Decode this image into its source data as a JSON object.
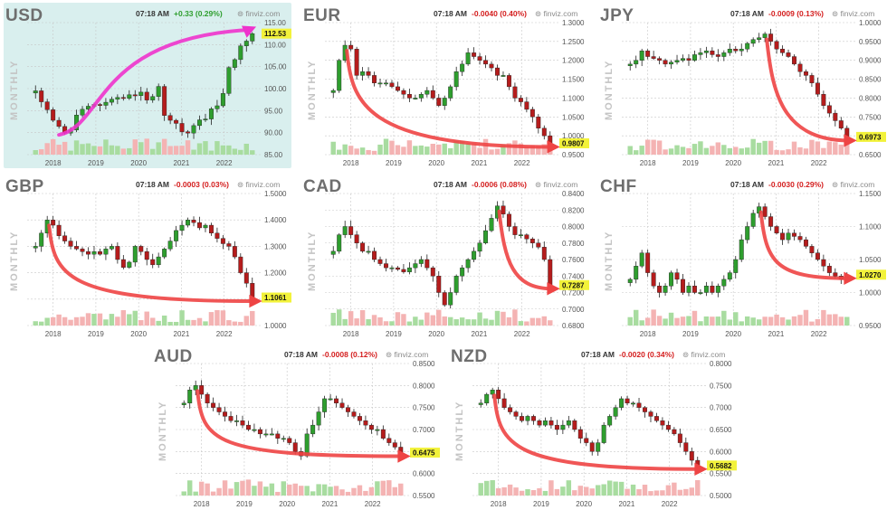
{
  "colors": {
    "up": "#2e9e2e",
    "down": "#b51c1c",
    "vol_up": "#a8dca0",
    "vol_down": "#f4b3b3",
    "grid": "#c8c8c8",
    "arrow_red": "#ee4444",
    "arrow_magenta": "#ee33cc",
    "price_tag": "#f2f23a",
    "highlight_bg": "#d9efee"
  },
  "chart_data": [
    {
      "type": "candlestick",
      "title": "USD",
      "time": "07:18 AM",
      "change": "+0.33 (0.29%)",
      "direction": "up",
      "source": "finviz.com",
      "ylabel": "MONTHLY",
      "last_price": "112.53",
      "yticks": [
        "115.00",
        "110.00",
        "105.00",
        "100.00",
        "95.00",
        "90.00",
        "85.00"
      ],
      "xticks": [
        "2018",
        "2019",
        "2020",
        "2021",
        "2022"
      ],
      "ylim": [
        85,
        115
      ],
      "arrow": "magenta",
      "highlight": true,
      "values": [
        99.5,
        97.0,
        95.2,
        92.8,
        91.4,
        89.9,
        90.6,
        94.0,
        95.3,
        96.0,
        96.4,
        96.2,
        96.9,
        97.6,
        98.0,
        97.8,
        98.6,
        98.4,
        99.2,
        97.4,
        98.2,
        100.5,
        93.9,
        92.8,
        92.1,
        90.2,
        89.9,
        91.6,
        92.9,
        93.1,
        95.4,
        96.1,
        98.9,
        104.8,
        106.6,
        109.7,
        110.8,
        112.5
      ]
    },
    {
      "type": "candlestick",
      "title": "EUR",
      "time": "07:18 AM",
      "change": "-0.0040 (0.40%)",
      "direction": "down",
      "source": "finviz.com",
      "ylabel": "MONTHLY",
      "last_price": "0.9807",
      "yticks": [
        "1.3000",
        "1.2500",
        "1.2000",
        "1.1500",
        "1.1000",
        "1.0500",
        "1.0000",
        "0.9500"
      ],
      "xticks": [
        "2018",
        "2019",
        "2020",
        "2021",
        "2022"
      ],
      "ylim": [
        0.95,
        1.3
      ],
      "arrow": "red",
      "highlight": false,
      "values": [
        1.12,
        1.2,
        1.24,
        1.23,
        1.16,
        1.17,
        1.16,
        1.14,
        1.14,
        1.14,
        1.13,
        1.12,
        1.11,
        1.1,
        1.1,
        1.11,
        1.12,
        1.1,
        1.08,
        1.1,
        1.13,
        1.17,
        1.19,
        1.22,
        1.21,
        1.2,
        1.19,
        1.18,
        1.16,
        1.16,
        1.13,
        1.1,
        1.09,
        1.07,
        1.05,
        1.02,
        1.0,
        0.98
      ]
    },
    {
      "type": "candlestick",
      "title": "JPY",
      "time": "07:18 AM",
      "change": "-0.0009 (0.13%)",
      "direction": "down",
      "source": "finviz.com",
      "ylabel": "MONTHLY",
      "last_price": "0.6973",
      "yticks": [
        "1.0000",
        "0.9500",
        "0.9000",
        "0.8500",
        "0.8000",
        "0.7500",
        "0.7000",
        "0.6500"
      ],
      "xticks": [
        "2018",
        "2019",
        "2020",
        "2021",
        "2022"
      ],
      "ylim": [
        0.65,
        1.0
      ],
      "arrow": "red",
      "highlight": false,
      "values": [
        0.89,
        0.9,
        0.925,
        0.91,
        0.905,
        0.9,
        0.89,
        0.895,
        0.9,
        0.905,
        0.9,
        0.915,
        0.92,
        0.925,
        0.915,
        0.91,
        0.92,
        0.93,
        0.925,
        0.93,
        0.945,
        0.955,
        0.96,
        0.97,
        0.95,
        0.93,
        0.92,
        0.91,
        0.89,
        0.87,
        0.86,
        0.84,
        0.81,
        0.78,
        0.76,
        0.74,
        0.72,
        0.697
      ]
    },
    {
      "type": "candlestick",
      "title": "GBP",
      "time": "07:18 AM",
      "change": "-0.0003 (0.03%)",
      "direction": "down",
      "source": "finviz.com",
      "ylabel": "MONTHLY",
      "last_price": "1.1061",
      "yticks": [
        "1.5000",
        "1.4000",
        "1.3000",
        "1.2000",
        "1.1000",
        "1.0000"
      ],
      "xticks": [
        "2018",
        "2019",
        "2020",
        "2021",
        "2022"
      ],
      "ylim": [
        1.0,
        1.5
      ],
      "arrow": "red",
      "highlight": false,
      "values": [
        1.3,
        1.35,
        1.4,
        1.38,
        1.34,
        1.32,
        1.3,
        1.29,
        1.28,
        1.27,
        1.28,
        1.27,
        1.29,
        1.3,
        1.25,
        1.22,
        1.24,
        1.3,
        1.28,
        1.25,
        1.23,
        1.26,
        1.29,
        1.32,
        1.36,
        1.38,
        1.4,
        1.39,
        1.37,
        1.38,
        1.35,
        1.33,
        1.31,
        1.3,
        1.26,
        1.2,
        1.16,
        1.106
      ]
    },
    {
      "type": "candlestick",
      "title": "CAD",
      "time": "07:18 AM",
      "change": "-0.0006 (0.08%)",
      "direction": "down",
      "source": "finviz.com",
      "ylabel": "MONTHLY",
      "last_price": "0.7287",
      "yticks": [
        "0.8400",
        "0.8200",
        "0.8000",
        "0.7800",
        "0.7600",
        "0.7400",
        "0.7200",
        "0.7000",
        "0.6800"
      ],
      "xticks": [
        "2018",
        "2019",
        "2020",
        "2021",
        "2022"
      ],
      "ylim": [
        0.68,
        0.84
      ],
      "arrow": "red",
      "highlight": false,
      "values": [
        0.77,
        0.79,
        0.8,
        0.79,
        0.78,
        0.77,
        0.77,
        0.76,
        0.755,
        0.75,
        0.75,
        0.748,
        0.745,
        0.75,
        0.755,
        0.76,
        0.75,
        0.74,
        0.72,
        0.705,
        0.72,
        0.74,
        0.75,
        0.76,
        0.77,
        0.78,
        0.795,
        0.81,
        0.825,
        0.815,
        0.8,
        0.79,
        0.79,
        0.785,
        0.78,
        0.775,
        0.76,
        0.729
      ]
    },
    {
      "type": "candlestick",
      "title": "CHF",
      "time": "07:18 AM",
      "change": "-0.0030 (0.29%)",
      "direction": "down",
      "source": "finviz.com",
      "ylabel": "MONTHLY",
      "last_price": "1.0270",
      "yticks": [
        "1.1500",
        "1.1000",
        "1.0500",
        "1.0000",
        "0.9500"
      ],
      "xticks": [
        "2018",
        "2019",
        "2020",
        "2021",
        "2022"
      ],
      "ylim": [
        0.95,
        1.15
      ],
      "arrow": "red",
      "highlight": false,
      "values": [
        1.02,
        1.04,
        1.06,
        1.03,
        1.01,
        1.0,
        1.01,
        1.03,
        1.02,
        1.0,
        1.01,
        1.0,
        1.0,
        1.01,
        1.0,
        1.01,
        1.02,
        1.03,
        1.05,
        1.08,
        1.1,
        1.12,
        1.13,
        1.115,
        1.1,
        1.09,
        1.08,
        1.09,
        1.085,
        1.08,
        1.07,
        1.06,
        1.05,
        1.04,
        1.03,
        1.025,
        1.02,
        1.027
      ]
    },
    {
      "type": "candlestick",
      "title": "AUD",
      "time": "07:18 AM",
      "change": "-0.0008 (0.12%)",
      "direction": "down",
      "source": "finviz.com",
      "ylabel": "MONTHLY",
      "last_price": "0.6475",
      "yticks": [
        "0.8500",
        "0.8000",
        "0.7500",
        "0.7000",
        "0.6500",
        "0.6000",
        "0.5500"
      ],
      "xticks": [
        "2018",
        "2019",
        "2020",
        "2021",
        "2022"
      ],
      "ylim": [
        0.55,
        0.85
      ],
      "arrow": "red",
      "highlight": false,
      "values": [
        0.76,
        0.79,
        0.8,
        0.78,
        0.76,
        0.75,
        0.74,
        0.73,
        0.72,
        0.72,
        0.71,
        0.7,
        0.7,
        0.69,
        0.69,
        0.69,
        0.68,
        0.68,
        0.67,
        0.65,
        0.64,
        0.69,
        0.71,
        0.74,
        0.77,
        0.77,
        0.76,
        0.75,
        0.74,
        0.73,
        0.72,
        0.71,
        0.7,
        0.7,
        0.68,
        0.67,
        0.66,
        0.6475
      ]
    },
    {
      "type": "candlestick",
      "title": "NZD",
      "time": "07:18 AM",
      "change": "-0.0020 (0.34%)",
      "direction": "down",
      "source": "finviz.com",
      "ylabel": "MONTHLY",
      "last_price": "0.5682",
      "yticks": [
        "0.8000",
        "0.7500",
        "0.7000",
        "0.6500",
        "0.6000",
        "0.5500",
        "0.5000"
      ],
      "xticks": [
        "2018",
        "2019",
        "2020",
        "2021",
        "2022"
      ],
      "ylim": [
        0.5,
        0.8
      ],
      "arrow": "red",
      "highlight": false,
      "values": [
        0.71,
        0.73,
        0.74,
        0.72,
        0.7,
        0.69,
        0.68,
        0.67,
        0.68,
        0.67,
        0.66,
        0.67,
        0.66,
        0.65,
        0.66,
        0.67,
        0.65,
        0.63,
        0.62,
        0.6,
        0.62,
        0.66,
        0.68,
        0.7,
        0.72,
        0.71,
        0.71,
        0.7,
        0.69,
        0.68,
        0.67,
        0.66,
        0.65,
        0.64,
        0.62,
        0.6,
        0.58,
        0.5682
      ]
    }
  ]
}
